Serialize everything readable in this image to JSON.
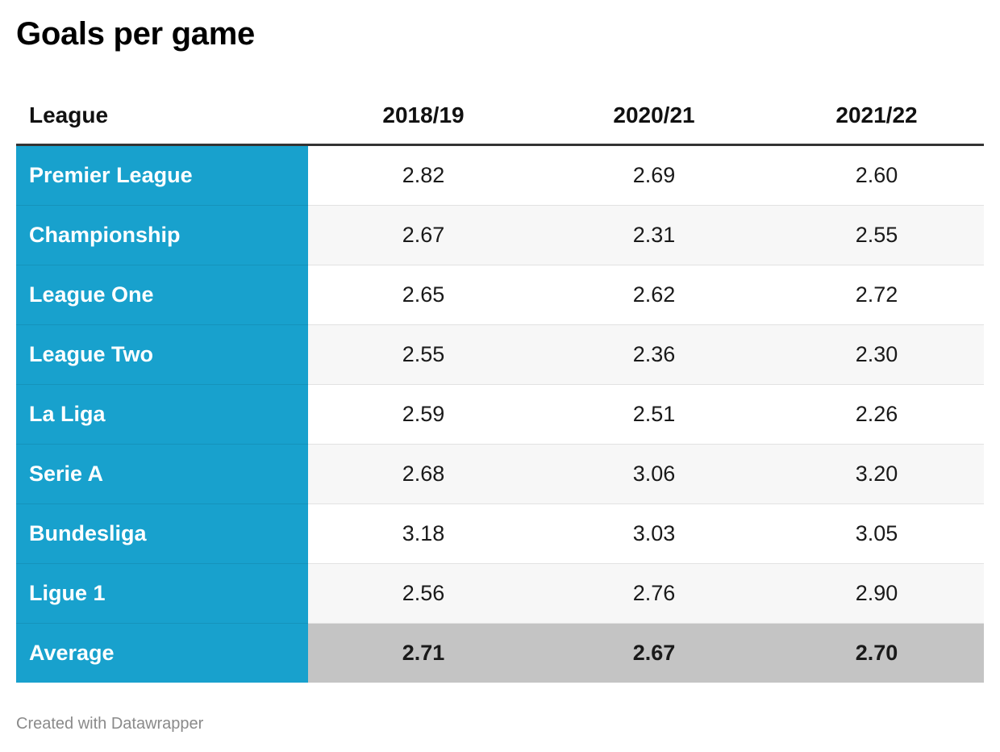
{
  "title": "Goals per game",
  "footer": "Created with Datawrapper",
  "colors": {
    "league_column": "#18a1cd",
    "average_row": "#c4c4c4",
    "stripe": "#f7f7f7"
  },
  "chart_data": {
    "type": "table",
    "title": "Goals per game",
    "columns": [
      "League",
      "2018/19",
      "2020/21",
      "2021/22"
    ],
    "rows": [
      {
        "league": "Premier League",
        "values": [
          "2.82",
          "2.69",
          "2.60"
        ]
      },
      {
        "league": "Championship",
        "values": [
          "2.67",
          "2.31",
          "2.55"
        ]
      },
      {
        "league": "League One",
        "values": [
          "2.65",
          "2.62",
          "2.72"
        ]
      },
      {
        "league": "League Two",
        "values": [
          "2.55",
          "2.36",
          "2.30"
        ]
      },
      {
        "league": "La Liga",
        "values": [
          "2.59",
          "2.51",
          "2.26"
        ]
      },
      {
        "league": "Serie A",
        "values": [
          "2.68",
          "3.06",
          "3.20"
        ]
      },
      {
        "league": "Bundesliga",
        "values": [
          "3.18",
          "3.03",
          "3.05"
        ]
      },
      {
        "league": "Ligue 1",
        "values": [
          "2.56",
          "2.76",
          "2.90"
        ]
      },
      {
        "league": "Average",
        "values": [
          "2.71",
          "2.67",
          "2.70"
        ]
      }
    ]
  }
}
